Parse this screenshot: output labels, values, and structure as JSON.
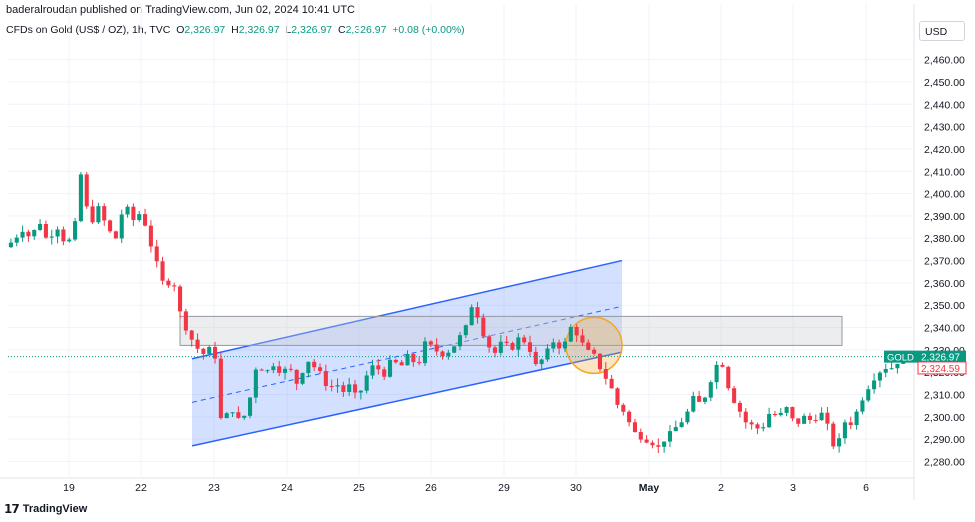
{
  "header": {
    "publisher": "baderalroudan published on TradingView.com, Jun 02, 2024 10:41 UTC",
    "symbol": "CFDs on Gold (US$ / OZ), 1h, TVC",
    "o_label": "O",
    "o_value": "2,326.97",
    "h_label": "H",
    "h_value": "2,326.97",
    "l_label": "L",
    "l_value": "2,326.97",
    "c_label": "C",
    "c_value": "2,326.97",
    "change": "+0.08 (+0.00%)",
    "currency": "USD"
  },
  "footer": {
    "brand": "TradingView",
    "logo_icon": "tradingview-logo-icon"
  },
  "chart_data": {
    "type": "candlestick",
    "y_ticks": [
      "2,280.00",
      "2,290.00",
      "2,300.00",
      "2,310.00",
      "2,320.00",
      "2,330.00",
      "2,340.00",
      "2,350.00",
      "2,360.00",
      "2,370.00",
      "2,380.00",
      "2,390.00",
      "2,400.00",
      "2,410.00",
      "2,420.00",
      "2,430.00",
      "2,440.00",
      "2,450.00",
      "2,460.00"
    ],
    "y_tick_values": [
      2280,
      2290,
      2300,
      2310,
      2320,
      2330,
      2340,
      2350,
      2360,
      2370,
      2380,
      2390,
      2400,
      2410,
      2420,
      2430,
      2440,
      2450,
      2460
    ],
    "x_ticks": [
      "19",
      "22",
      "23",
      "24",
      "25",
      "26",
      "29",
      "30",
      "May",
      "2",
      "3",
      "6"
    ],
    "ylim": [
      2273.5,
      2467
    ],
    "symbol_badge": {
      "name": "GOLD",
      "value": "2,326.97",
      "price": 2326.97,
      "color": "#089981"
    },
    "bid_badge": {
      "value": "2,324.59",
      "price": 2324.59,
      "color": "#f23645"
    },
    "current_price_line": 2326.97,
    "resistance_zone": {
      "top": 2345,
      "bottom": 2332
    },
    "channel": {
      "upper": [
        2326,
        2370
      ],
      "lower": [
        2287,
        2329
      ],
      "mid_line_style": "dashed",
      "color": "#2962ff"
    },
    "highlight_circle": {
      "price": 2332,
      "color": "#f5a623"
    },
    "up_color": "#089981",
    "down_color": "#f23645",
    "anchors": [
      [
        0,
        2376
      ],
      [
        6,
        2379
      ],
      [
        12,
        2384
      ],
      [
        18,
        2380
      ],
      [
        24,
        2388
      ],
      [
        30,
        2378
      ],
      [
        36,
        2386
      ],
      [
        42,
        2378
      ],
      [
        48,
        2380
      ],
      [
        54,
        2412
      ],
      [
        56,
        2398
      ],
      [
        60,
        2386
      ],
      [
        66,
        2394
      ],
      [
        72,
        2384
      ],
      [
        78,
        2380
      ],
      [
        84,
        2396
      ],
      [
        90,
        2388
      ],
      [
        96,
        2392
      ],
      [
        102,
        2378
      ],
      [
        108,
        2366
      ],
      [
        112,
        2358
      ],
      [
        118,
        2362
      ],
      [
        124,
        2344
      ],
      [
        130,
        2336
      ],
      [
        136,
        2330
      ],
      [
        140,
        2328
      ],
      [
        146,
        2332
      ],
      [
        148,
        2326
      ],
      [
        150,
        2300
      ],
      [
        154,
        2298
      ],
      [
        158,
        2304
      ],
      [
        162,
        2302
      ],
      [
        166,
        2296
      ],
      [
        170,
        2304
      ],
      [
        174,
        2312
      ],
      [
        178,
        2328
      ],
      [
        182,
        2318
      ],
      [
        188,
        2324
      ],
      [
        194,
        2320
      ],
      [
        200,
        2322
      ],
      [
        206,
        2314
      ],
      [
        212,
        2326
      ],
      [
        218,
        2322
      ],
      [
        224,
        2318
      ],
      [
        228,
        2310
      ],
      [
        232,
        2318
      ],
      [
        236,
        2310
      ],
      [
        242,
        2314
      ],
      [
        248,
        2308
      ],
      [
        254,
        2318
      ],
      [
        260,
        2324
      ],
      [
        266,
        2318
      ],
      [
        272,
        2326
      ],
      [
        278,
        2322
      ],
      [
        284,
        2328
      ],
      [
        290,
        2322
      ],
      [
        296,
        2334
      ],
      [
        302,
        2330
      ],
      [
        308,
        2328
      ],
      [
        314,
        2330
      ],
      [
        320,
        2336
      ],
      [
        326,
        2342
      ],
      [
        328,
        2350
      ],
      [
        332,
        2346
      ],
      [
        338,
        2334
      ],
      [
        344,
        2328
      ],
      [
        350,
        2334
      ],
      [
        356,
        2330
      ],
      [
        362,
        2336
      ],
      [
        368,
        2332
      ],
      [
        374,
        2322
      ],
      [
        380,
        2328
      ],
      [
        386,
        2334
      ],
      [
        392,
        2330
      ],
      [
        398,
        2340
      ],
      [
        404,
        2336
      ],
      [
        408,
        2330
      ],
      [
        414,
        2328
      ],
      [
        420,
        2320
      ],
      [
        426,
        2314
      ],
      [
        430,
        2306
      ],
      [
        436,
        2302
      ],
      [
        440,
        2296
      ],
      [
        444,
        2292
      ],
      [
        450,
        2290
      ],
      [
        456,
        2288
      ],
      [
        460,
        2286
      ],
      [
        464,
        2290
      ],
      [
        470,
        2294
      ],
      [
        476,
        2298
      ],
      [
        482,
        2304
      ],
      [
        486,
        2312
      ],
      [
        490,
        2302
      ],
      [
        494,
        2314
      ],
      [
        498,
        2318
      ],
      [
        502,
        2326
      ],
      [
        506,
        2322
      ],
      [
        510,
        2310
      ],
      [
        516,
        2304
      ],
      [
        520,
        2298
      ],
      [
        526,
        2296
      ],
      [
        532,
        2294
      ],
      [
        538,
        2302
      ],
      [
        544,
        2300
      ],
      [
        550,
        2304
      ],
      [
        556,
        2296
      ],
      [
        562,
        2300
      ],
      [
        568,
        2298
      ],
      [
        574,
        2302
      ],
      [
        580,
        2294
      ],
      [
        584,
        2284
      ],
      [
        588,
        2292
      ],
      [
        592,
        2300
      ],
      [
        596,
        2296
      ],
      [
        600,
        2304
      ],
      [
        606,
        2312
      ],
      [
        612,
        2318
      ],
      [
        618,
        2322
      ],
      [
        624,
        2322
      ],
      [
        630,
        2326
      ],
      [
        636,
        2327
      ]
    ]
  }
}
